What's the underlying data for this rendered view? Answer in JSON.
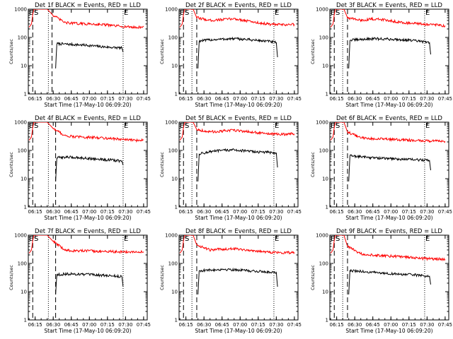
{
  "figure": {
    "x_tick_labels": [
      "06:15",
      "06:30",
      "06:45",
      "07:00",
      "07:15",
      "07:30",
      "07:45"
    ],
    "y_tick_labels": [
      "1",
      "10",
      "100",
      "1000"
    ],
    "y_label": "Counts/sec",
    "x_label": "Start Time (17-May-10 06:09:20)",
    "marker_labels": [
      "E",
      "S",
      "E"
    ]
  },
  "chart_data": [
    {
      "type": "line",
      "title": "Det 1f BLACK = Events, RED = LLD",
      "xlabel": "Start Time (17-May-10 06:09:20)",
      "ylabel": "Counts/sec",
      "y_scale": "log",
      "xlim": [
        "06:09:20",
        "07:48:00"
      ],
      "ylim": [
        1,
        1000
      ],
      "grid": false,
      "dashed_markers": [
        "06:13",
        "06:29"
      ],
      "dotted_markers": [
        "06:26",
        "07:28"
      ],
      "series": [
        {
          "name": "Events",
          "color": "#000000",
          "x": [
            "06:32",
            "06:33",
            "06:40",
            "06:50",
            "07:00",
            "07:10",
            "07:20",
            "07:27",
            "07:28"
          ],
          "y": [
            8,
            60,
            58,
            55,
            52,
            47,
            44,
            42,
            30
          ]
        },
        {
          "name": "LLD",
          "color": "#ff0000",
          "x": [
            "06:10",
            "06:12",
            "06:13",
            "06:14",
            "06:15",
            "06:25",
            "06:30",
            "06:40",
            "06:50",
            "07:00",
            "07:10",
            "07:20",
            "07:30",
            "07:40",
            "07:45"
          ],
          "y": [
            230,
            300,
            650,
            1000,
            1000,
            1000,
            600,
            330,
            310,
            300,
            290,
            260,
            240,
            225,
            240
          ]
        }
      ]
    },
    {
      "type": "line",
      "title": "Det 2f BLACK = Events, RED = LLD",
      "xlabel": "Start Time (17-May-10 06:09:20)",
      "ylabel": "Counts/sec",
      "y_scale": "log",
      "xlim": [
        "06:09:20",
        "07:48:00"
      ],
      "ylim": [
        1,
        1000
      ],
      "grid": false,
      "dashed_markers": [
        "06:13",
        "06:24"
      ],
      "dotted_markers": [
        "06:20",
        "07:28"
      ],
      "series": [
        {
          "name": "Events",
          "color": "#000000",
          "x": [
            "06:25",
            "06:26",
            "06:35",
            "06:45",
            "06:55",
            "07:05",
            "07:15",
            "07:25",
            "07:30",
            "07:31"
          ],
          "y": [
            8,
            75,
            82,
            87,
            90,
            85,
            78,
            72,
            65,
            20
          ]
        },
        {
          "name": "LLD",
          "color": "#ff0000",
          "x": [
            "06:10",
            "06:12",
            "06:13",
            "06:14",
            "06:15",
            "06:21",
            "06:24",
            "06:35",
            "06:45",
            "06:55",
            "07:05",
            "07:15",
            "07:25",
            "07:35",
            "07:45"
          ],
          "y": [
            230,
            300,
            650,
            1000,
            1000,
            1000,
            500,
            400,
            430,
            460,
            390,
            330,
            290,
            280,
            290
          ]
        }
      ]
    },
    {
      "type": "line",
      "title": "Det 3f BLACK = Events, RED = LLD",
      "xlabel": "Start Time (17-May-10 06:09:20)",
      "ylabel": "Counts/sec",
      "y_scale": "log",
      "xlim": [
        "06:09:20",
        "07:48:00"
      ],
      "ylim": [
        1,
        1000
      ],
      "grid": false,
      "dashed_markers": [
        "06:13",
        "06:24"
      ],
      "dotted_markers": [
        "06:20",
        "07:28"
      ],
      "series": [
        {
          "name": "Events",
          "color": "#000000",
          "x": [
            "06:25",
            "06:26",
            "06:35",
            "06:45",
            "06:55",
            "07:05",
            "07:15",
            "07:25",
            "07:32",
            "07:33"
          ],
          "y": [
            8,
            80,
            85,
            90,
            88,
            85,
            80,
            72,
            65,
            25
          ]
        },
        {
          "name": "LLD",
          "color": "#ff0000",
          "x": [
            "06:10",
            "06:12",
            "06:13",
            "06:14",
            "06:15",
            "06:21",
            "06:24",
            "06:35",
            "06:45",
            "06:55",
            "07:05",
            "07:15",
            "07:25",
            "07:35",
            "07:45"
          ],
          "y": [
            230,
            300,
            650,
            1000,
            1000,
            1000,
            500,
            400,
            450,
            420,
            360,
            320,
            300,
            280,
            260
          ]
        }
      ]
    },
    {
      "type": "line",
      "title": "Det 4f BLACK = Events, RED = LLD",
      "xlabel": "Start Time (17-May-10 06:09:20)",
      "ylabel": "Counts/sec",
      "y_scale": "log",
      "xlim": [
        "06:09:20",
        "07:48:00"
      ],
      "ylim": [
        1,
        1000
      ],
      "grid": false,
      "dashed_markers": [
        "06:13",
        "06:32"
      ],
      "dotted_markers": [
        "06:26",
        "07:28"
      ],
      "series": [
        {
          "name": "Events",
          "color": "#000000",
          "x": [
            "06:32",
            "06:33",
            "06:40",
            "06:50",
            "07:00",
            "07:10",
            "07:20",
            "07:27",
            "07:28"
          ],
          "y": [
            8,
            55,
            58,
            56,
            52,
            48,
            45,
            42,
            30
          ]
        },
        {
          "name": "LLD",
          "color": "#ff0000",
          "x": [
            "06:10",
            "06:12",
            "06:13",
            "06:14",
            "06:15",
            "06:25",
            "06:30",
            "06:40",
            "06:50",
            "07:00",
            "07:10",
            "07:20",
            "07:30",
            "07:40",
            "07:45"
          ],
          "y": [
            230,
            300,
            650,
            1000,
            1000,
            1000,
            600,
            330,
            300,
            290,
            280,
            260,
            240,
            225,
            240
          ]
        }
      ]
    },
    {
      "type": "line",
      "title": "Det 5f BLACK = Events, RED = LLD",
      "xlabel": "Start Time (17-May-10 06:09:20)",
      "ylabel": "Counts/sec",
      "y_scale": "log",
      "xlim": [
        "06:09:20",
        "07:48:00"
      ],
      "ylim": [
        1,
        1000
      ],
      "grid": false,
      "dashed_markers": [
        "06:13",
        "06:24"
      ],
      "dotted_markers": [
        "06:20",
        "07:28"
      ],
      "series": [
        {
          "name": "Events",
          "color": "#000000",
          "x": [
            "06:25",
            "06:26",
            "06:35",
            "06:45",
            "06:55",
            "07:05",
            "07:15",
            "07:25",
            "07:30",
            "07:31"
          ],
          "y": [
            8,
            75,
            90,
            100,
            105,
            95,
            88,
            85,
            80,
            25
          ]
        },
        {
          "name": "LLD",
          "color": "#ff0000",
          "x": [
            "06:10",
            "06:12",
            "06:13",
            "06:14",
            "06:15",
            "06:21",
            "06:24",
            "06:35",
            "06:45",
            "06:55",
            "07:05",
            "07:15",
            "07:25",
            "07:35",
            "07:45"
          ],
          "y": [
            230,
            300,
            650,
            1000,
            1000,
            1000,
            550,
            450,
            480,
            520,
            470,
            420,
            380,
            370,
            390
          ]
        }
      ]
    },
    {
      "type": "line",
      "title": "Det 6f BLACK = Events, RED = LLD",
      "xlabel": "Start Time (17-May-10 06:09:20)",
      "ylabel": "Counts/sec",
      "y_scale": "log",
      "xlim": [
        "06:09:20",
        "07:48:00"
      ],
      "ylim": [
        1,
        1000
      ],
      "grid": false,
      "dashed_markers": [
        "06:13",
        "06:24"
      ],
      "dotted_markers": [
        "06:20",
        "07:28"
      ],
      "series": [
        {
          "name": "Events",
          "color": "#000000",
          "x": [
            "06:25",
            "06:26",
            "06:35",
            "06:45",
            "06:55",
            "07:05",
            "07:15",
            "07:25",
            "07:32",
            "07:33"
          ],
          "y": [
            8,
            65,
            60,
            55,
            52,
            50,
            48,
            46,
            44,
            20
          ]
        },
        {
          "name": "LLD",
          "color": "#ff0000",
          "x": [
            "06:10",
            "06:12",
            "06:13",
            "06:14",
            "06:15",
            "06:21",
            "06:24",
            "06:35",
            "06:45",
            "06:55",
            "07:05",
            "07:15",
            "07:25",
            "07:35",
            "07:45"
          ],
          "y": [
            230,
            300,
            650,
            1000,
            1000,
            1000,
            450,
            280,
            260,
            250,
            240,
            230,
            220,
            215,
            210
          ]
        }
      ]
    },
    {
      "type": "line",
      "title": "Det 7f BLACK = Events, RED = LLD",
      "xlabel": "Start Time (17-May-10 06:09:20)",
      "ylabel": "Counts/sec",
      "y_scale": "log",
      "xlim": [
        "06:09:20",
        "07:48:00"
      ],
      "ylim": [
        1,
        1000
      ],
      "grid": false,
      "dashed_markers": [
        "06:13",
        "06:32"
      ],
      "dotted_markers": [
        "06:26",
        "07:28"
      ],
      "series": [
        {
          "name": "Events",
          "color": "#000000",
          "x": [
            "06:32",
            "06:33",
            "06:40",
            "06:50",
            "07:00",
            "07:10",
            "07:20",
            "07:27",
            "07:28"
          ],
          "y": [
            8,
            40,
            42,
            42,
            40,
            38,
            36,
            34,
            15
          ]
        },
        {
          "name": "LLD",
          "color": "#ff0000",
          "x": [
            "06:10",
            "06:12",
            "06:13",
            "06:14",
            "06:15",
            "06:25",
            "06:30",
            "06:40",
            "06:50",
            "07:00",
            "07:10",
            "07:20",
            "07:30",
            "07:40",
            "07:45"
          ],
          "y": [
            230,
            300,
            650,
            1000,
            1000,
            1000,
            600,
            290,
            280,
            275,
            270,
            260,
            255,
            250,
            260
          ]
        }
      ]
    },
    {
      "type": "line",
      "title": "Det 8f BLACK = Events, RED = LLD",
      "xlabel": "Start Time (17-May-10 06:09:20)",
      "ylabel": "Counts/sec",
      "y_scale": "log",
      "xlim": [
        "06:09:20",
        "07:48:00"
      ],
      "ylim": [
        1,
        1000
      ],
      "grid": false,
      "dashed_markers": [
        "06:13",
        "06:24"
      ],
      "dotted_markers": [
        "06:20",
        "07:28"
      ],
      "series": [
        {
          "name": "Events",
          "color": "#000000",
          "x": [
            "06:25",
            "06:26",
            "06:35",
            "06:45",
            "06:55",
            "07:05",
            "07:15",
            "07:25",
            "07:30",
            "07:31"
          ],
          "y": [
            8,
            55,
            58,
            62,
            60,
            56,
            52,
            50,
            48,
            15
          ]
        },
        {
          "name": "LLD",
          "color": "#ff0000",
          "x": [
            "06:10",
            "06:12",
            "06:13",
            "06:14",
            "06:15",
            "06:21",
            "06:24",
            "06:35",
            "06:45",
            "06:55",
            "07:05",
            "07:15",
            "07:25",
            "07:35",
            "07:45"
          ],
          "y": [
            230,
            300,
            650,
            1000,
            1000,
            1000,
            450,
            300,
            320,
            340,
            300,
            270,
            250,
            240,
            245
          ]
        }
      ]
    },
    {
      "type": "line",
      "title": "Det 9f BLACK = Events, RED = LLD",
      "xlabel": "Start Time (17-May-10 06:09:20)",
      "ylabel": "Counts/sec",
      "y_scale": "log",
      "xlim": [
        "06:09:20",
        "07:48:00"
      ],
      "ylim": [
        1,
        1000
      ],
      "grid": false,
      "dashed_markers": [
        "06:13",
        "06:24"
      ],
      "dotted_markers": [
        "06:20",
        "07:28"
      ],
      "series": [
        {
          "name": "Events",
          "color": "#000000",
          "x": [
            "06:25",
            "06:26",
            "06:35",
            "06:45",
            "06:55",
            "07:05",
            "07:15",
            "07:25",
            "07:32",
            "07:33"
          ],
          "y": [
            8,
            55,
            52,
            48,
            45,
            42,
            40,
            38,
            35,
            18
          ]
        },
        {
          "name": "LLD",
          "color": "#ff0000",
          "x": [
            "06:10",
            "06:12",
            "06:13",
            "06:14",
            "06:15",
            "06:21",
            "06:24",
            "06:35",
            "06:45",
            "06:55",
            "07:05",
            "07:15",
            "07:25",
            "07:35",
            "07:45"
          ],
          "y": [
            230,
            300,
            650,
            1000,
            1000,
            1000,
            400,
            220,
            200,
            185,
            175,
            165,
            150,
            145,
            140
          ]
        }
      ]
    }
  ]
}
